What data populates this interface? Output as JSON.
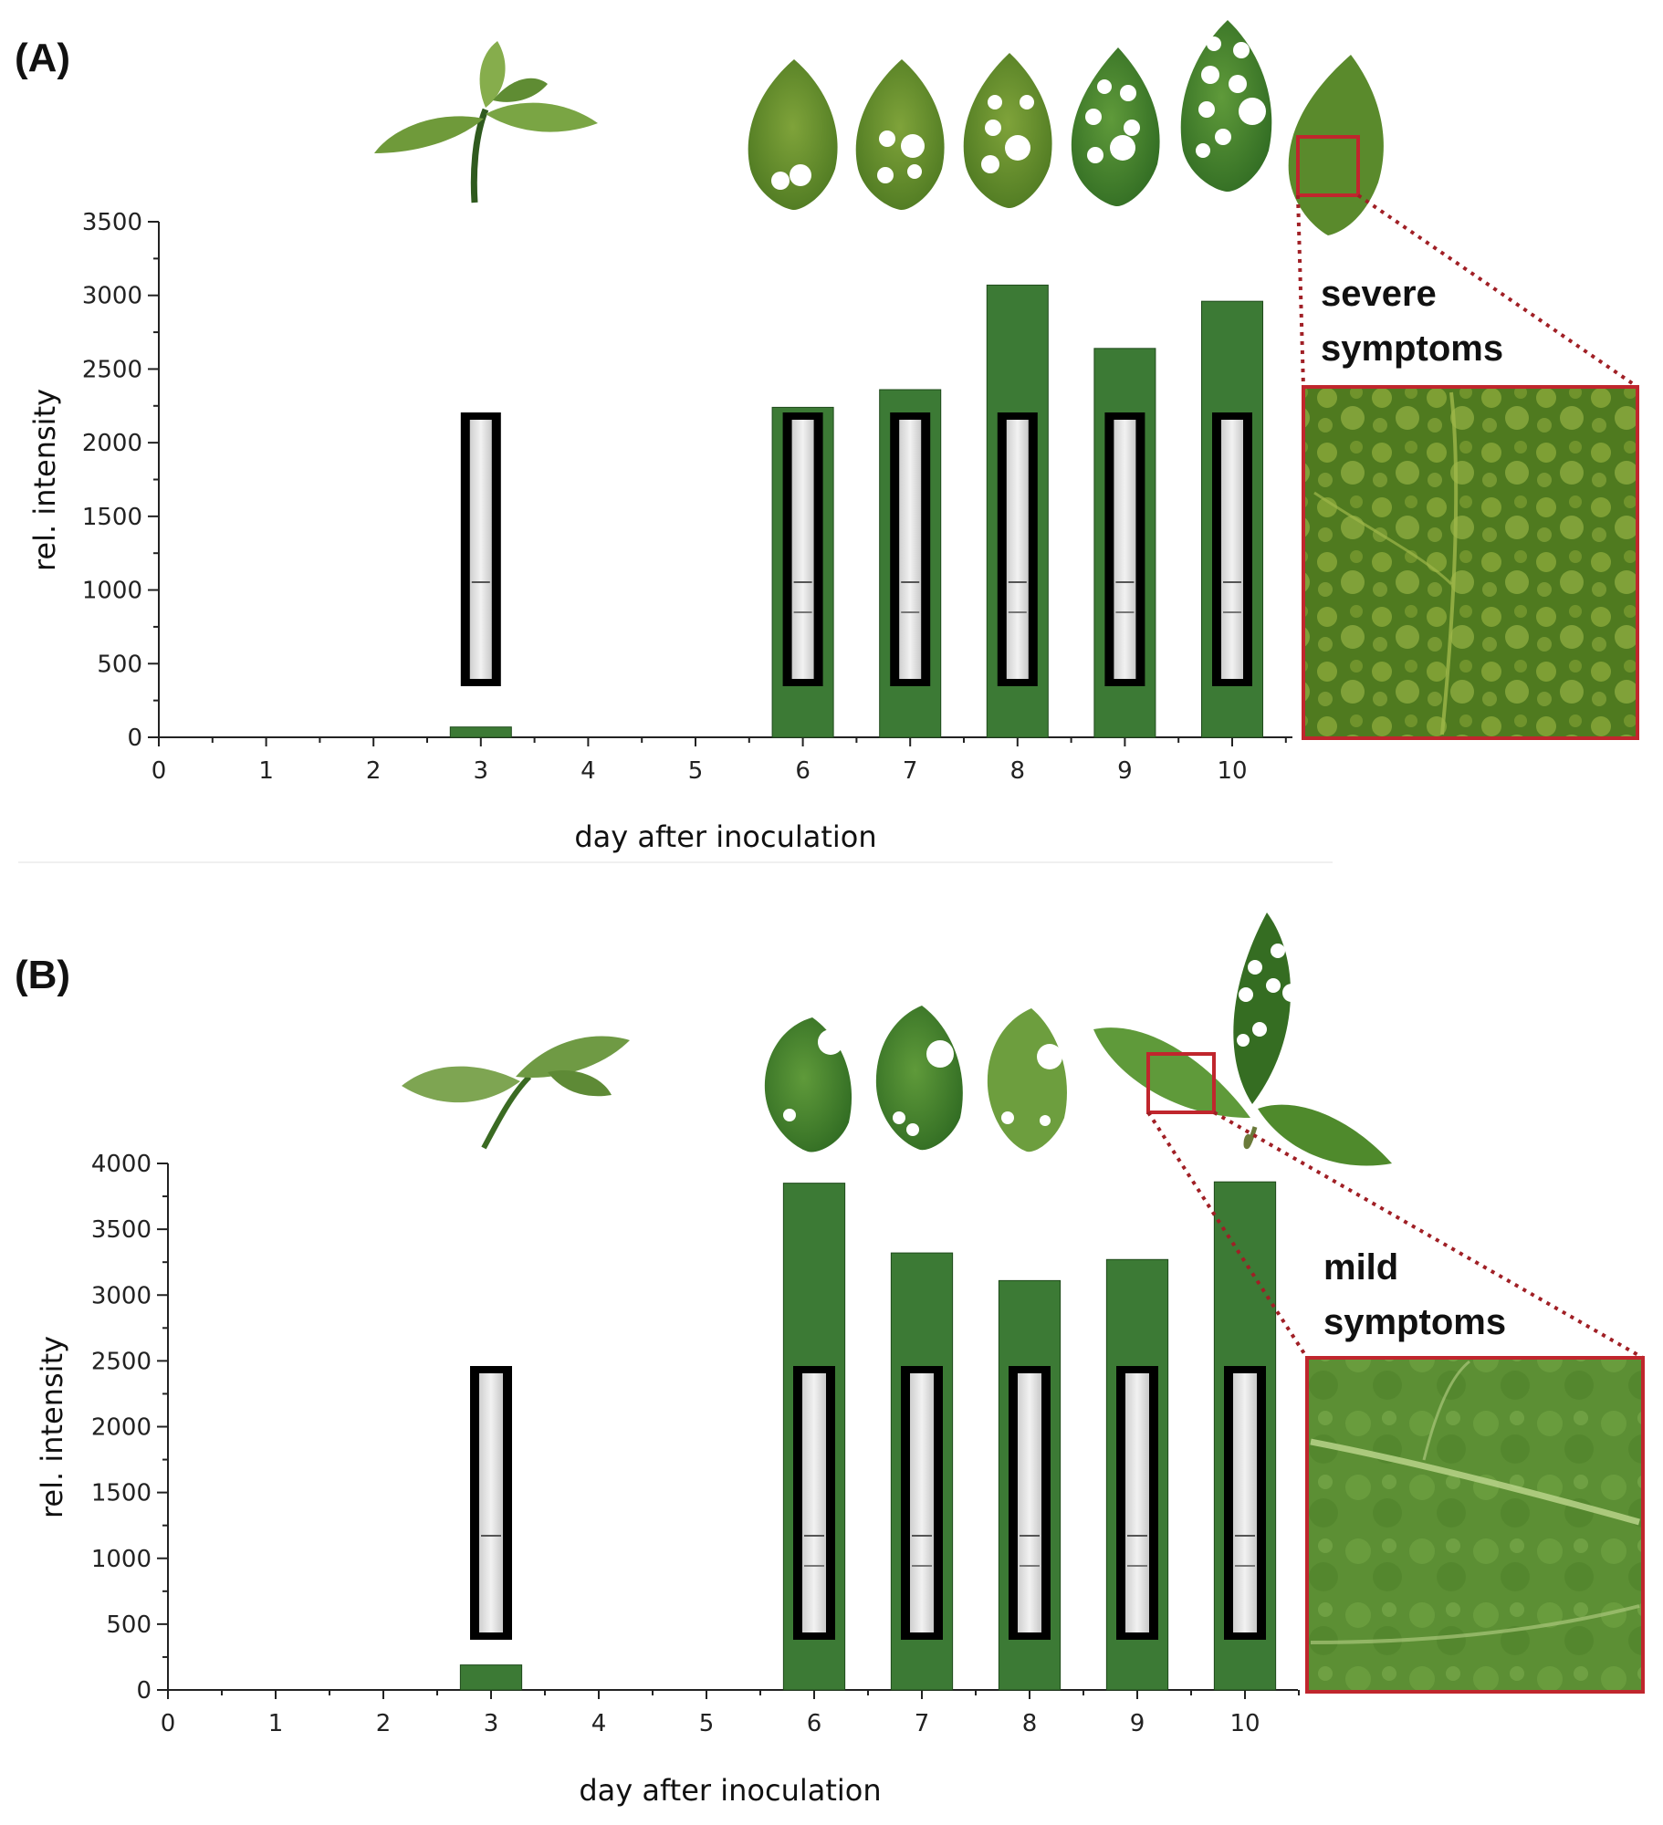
{
  "chart_data": [
    {
      "type": "bar",
      "panel_label": "(A)",
      "xlabel": "day after inoculation",
      "ylabel": "rel. intensity",
      "xticks": [
        "0",
        "1",
        "2",
        "3",
        "4",
        "5",
        "6",
        "7",
        "8",
        "9",
        "10"
      ],
      "yticks": [
        "0",
        "500",
        "1000",
        "1500",
        "2000",
        "2500",
        "3000",
        "3500"
      ],
      "xlim": [
        0,
        10.5
      ],
      "ylim": [
        0,
        3500
      ],
      "x": [
        3,
        6,
        7,
        8,
        9,
        10
      ],
      "values": [
        70,
        2240,
        2360,
        3070,
        2640,
        2960
      ],
      "bar_color": "#3c7a35",
      "symptom_label": [
        "severe",
        "symptoms"
      ],
      "inset_border_color": "#c0262d",
      "grid": false
    },
    {
      "type": "bar",
      "panel_label": "(B)",
      "xlabel": "day after inoculation",
      "ylabel": "rel. intensity",
      "xticks": [
        "0",
        "1",
        "2",
        "3",
        "4",
        "5",
        "6",
        "7",
        "8",
        "9",
        "10"
      ],
      "yticks": [
        "0",
        "500",
        "1000",
        "1500",
        "2000",
        "2500",
        "3000",
        "3500",
        "4000"
      ],
      "xlim": [
        0,
        10.5
      ],
      "ylim": [
        0,
        4000
      ],
      "x": [
        3,
        6,
        7,
        8,
        9,
        10
      ],
      "values": [
        190,
        3850,
        3320,
        3110,
        3270,
        3860
      ],
      "bar_color": "#3c7a35",
      "symptom_label": [
        "mild",
        "symptoms"
      ],
      "inset_border_color": "#c0262d",
      "grid": false
    }
  ]
}
